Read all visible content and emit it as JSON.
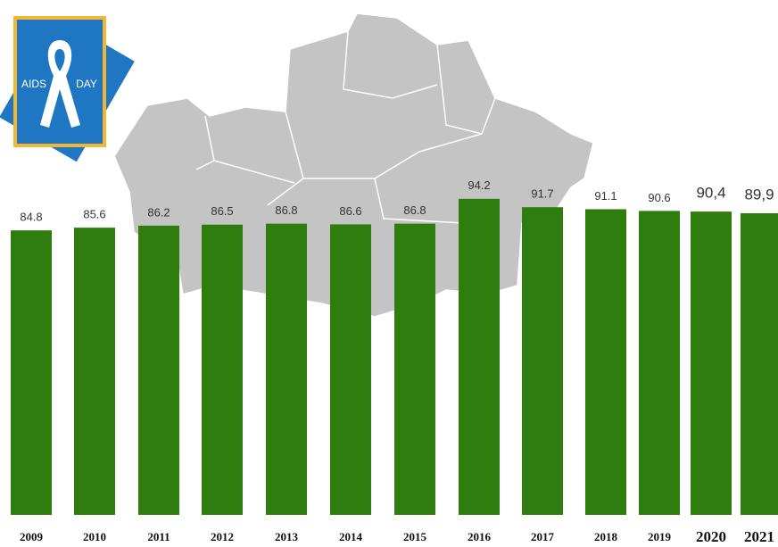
{
  "chart_data": {
    "type": "bar",
    "categories": [
      "2009",
      "2010",
      "2011",
      "2012",
      "2013",
      "2014",
      "2015",
      "2016",
      "2017",
      "2018",
      "2019",
      "2020",
      "2021"
    ],
    "values": [
      84.8,
      85.6,
      86.2,
      86.5,
      86.8,
      86.6,
      86.8,
      94.2,
      91.7,
      91.1,
      90.6,
      90.4,
      89.9
    ],
    "value_labels": [
      "84.8",
      "85.6",
      "86.2",
      "86.5",
      "86.8",
      "86.6",
      "86.8",
      "94.2",
      "91.7",
      "91.1",
      "90.6",
      "90,4",
      "89,9"
    ],
    "color": "#2e7d0e",
    "ylim": [
      0,
      100
    ]
  },
  "logo": {
    "left": "AIDS",
    "right": "DAY"
  }
}
